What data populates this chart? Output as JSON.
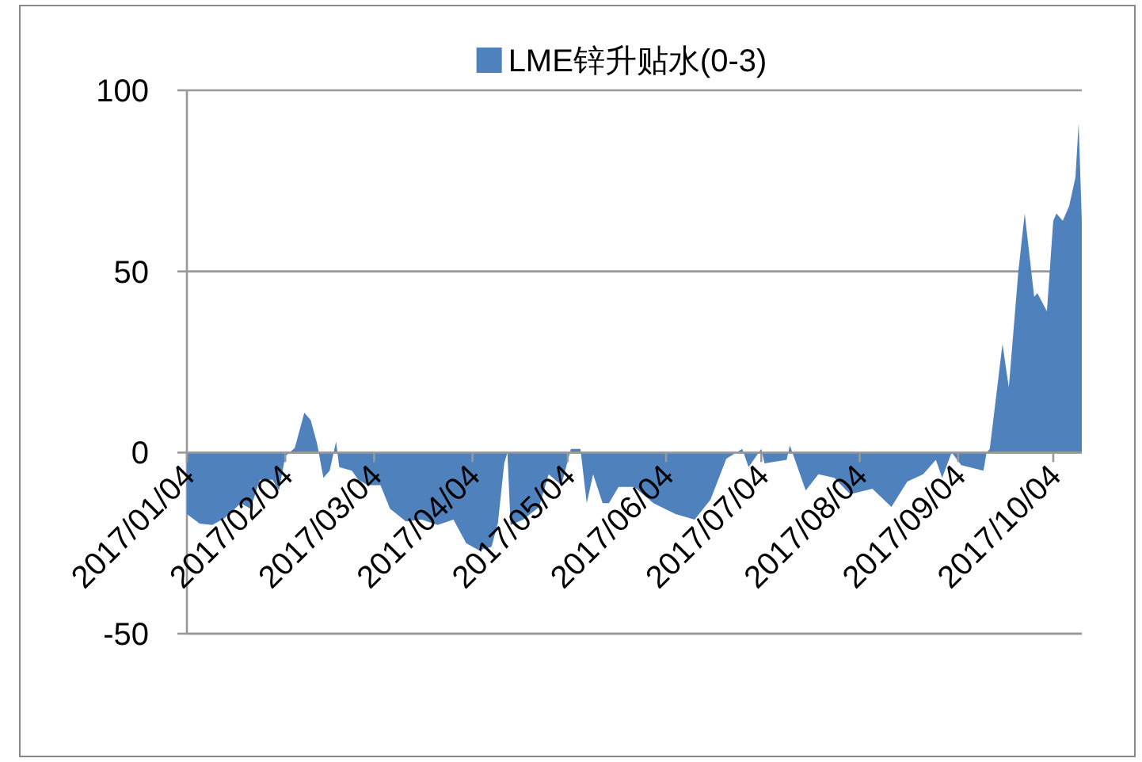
{
  "chart_data": {
    "type": "area",
    "legend": "top",
    "grid": "y",
    "x": [
      "2017-01-04",
      "2017-01-08",
      "2017-01-12",
      "2017-01-16",
      "2017-01-21",
      "2017-01-24",
      "2017-01-27",
      "2017-01-31",
      "2017-02-02",
      "2017-02-04",
      "2017-02-07",
      "2017-02-10",
      "2017-02-12",
      "2017-02-14",
      "2017-02-16",
      "2017-02-18",
      "2017-02-20",
      "2017-02-21",
      "2017-02-25",
      "2017-02-27",
      "2017-03-02",
      "2017-03-06",
      "2017-03-09",
      "2017-03-14",
      "2017-03-19",
      "2017-03-24",
      "2017-03-29",
      "2017-04-02",
      "2017-04-06",
      "2017-04-10",
      "2017-04-12",
      "2017-04-14",
      "2017-04-15",
      "2017-04-16",
      "2017-04-20",
      "2017-04-25",
      "2017-04-28",
      "2017-05-02",
      "2017-05-05",
      "2017-05-08",
      "2017-05-10",
      "2017-05-12",
      "2017-05-15",
      "2017-05-17",
      "2017-05-20",
      "2017-05-25",
      "2017-05-31",
      "2017-06-07",
      "2017-06-13",
      "2017-06-18",
      "2017-06-23",
      "2017-06-28",
      "2017-06-30",
      "2017-07-04",
      "2017-07-05",
      "2017-07-12",
      "2017-07-13",
      "2017-07-18",
      "2017-07-22",
      "2017-07-27",
      "2017-08-01",
      "2017-08-08",
      "2017-08-14",
      "2017-08-19",
      "2017-08-24",
      "2017-08-28",
      "2017-08-30",
      "2017-09-02",
      "2017-09-05",
      "2017-09-12",
      "2017-09-13",
      "2017-09-14",
      "2017-09-18",
      "2017-09-20",
      "2017-09-23",
      "2017-09-25",
      "2017-09-28",
      "2017-09-29",
      "2017-10-02",
      "2017-10-04",
      "2017-10-05",
      "2017-10-07",
      "2017-10-09",
      "2017-10-11",
      "2017-10-12",
      "2017-10-13"
    ],
    "series": [
      {
        "name": "LME锌升贴水(0-3)",
        "color": "#4f81bd",
        "values": [
          -17,
          -19.6,
          -20,
          -18,
          -14,
          -15.5,
          -7.5,
          -7.5,
          -10.5,
          -1,
          1.3,
          11,
          9,
          2.6,
          -7,
          -5,
          3,
          -4,
          -5,
          -7.5,
          -9,
          -9,
          -15.5,
          -19,
          -18.5,
          -20,
          -18.5,
          -25,
          -27,
          -26,
          -19.5,
          -3,
          0,
          -20,
          -18.5,
          -15,
          -6,
          -9,
          1,
          1,
          -14,
          -6,
          -14,
          -14,
          -9.5,
          -9.5,
          -14,
          -17,
          -18.5,
          -13,
          -1.7,
          1,
          -4,
          1,
          -3,
          -2,
          2,
          -10.5,
          -6,
          -7,
          -11.5,
          -10,
          -15,
          -8,
          -6,
          -2,
          -7,
          0,
          -3.5,
          -5,
          0,
          1,
          30,
          18,
          50,
          66,
          43,
          44,
          39,
          64,
          66,
          64,
          68,
          76,
          91,
          64
        ]
      }
    ],
    "xlim": [
      "2017-01-04",
      "2017-10-13"
    ],
    "xticks": [
      {
        "value": "2017-01-04",
        "label": "2017/01/04"
      },
      {
        "value": "2017-02-04",
        "label": "2017/02/04"
      },
      {
        "value": "2017-03-04",
        "label": "2017/03/04"
      },
      {
        "value": "2017-04-04",
        "label": "2017/04/04"
      },
      {
        "value": "2017-05-04",
        "label": "2017/05/04"
      },
      {
        "value": "2017-06-04",
        "label": "2017/06/04"
      },
      {
        "value": "2017-07-04",
        "label": "2017/07/04"
      },
      {
        "value": "2017-08-04",
        "label": "2017/08/04"
      },
      {
        "value": "2017-09-04",
        "label": "2017/09/04"
      },
      {
        "value": "2017-10-04",
        "label": "2017/10/04"
      }
    ],
    "ylim": [
      -50,
      100
    ],
    "yticks": [
      -50,
      0,
      50,
      100
    ]
  }
}
